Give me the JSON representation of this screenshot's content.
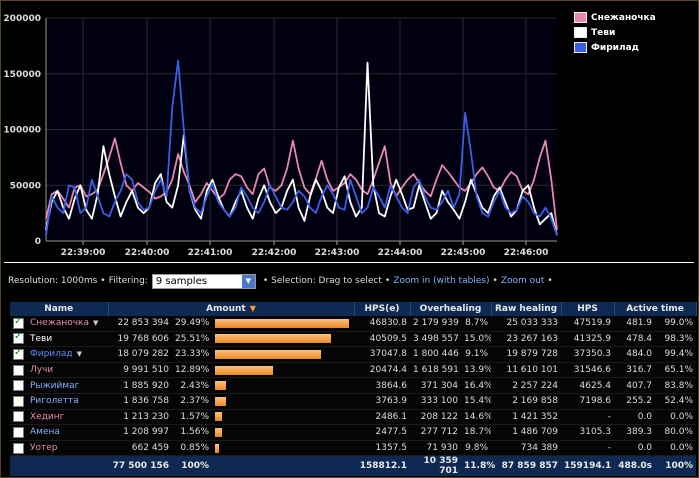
{
  "chart_data": {
    "type": "line",
    "y_ticks": [
      "200000",
      "150000",
      "100000",
      "50000",
      "0"
    ],
    "ylim": [
      0,
      200000
    ],
    "x_ticks": [
      "22:39:00",
      "22:40:00",
      "22:41:00",
      "22:42:00",
      "22:43:00",
      "22:44:00",
      "22:45:00",
      "22:46:00"
    ],
    "xlim": [
      0,
      89
    ],
    "grid": true,
    "legend_position": "right-top",
    "series": [
      {
        "name": "Снежаночка",
        "color": "#e888b0",
        "values": [
          20000,
          42000,
          45000,
          38000,
          30000,
          48000,
          50000,
          40000,
          42000,
          46000,
          60000,
          75000,
          92000,
          70000,
          50000,
          45000,
          52000,
          48000,
          44000,
          38000,
          40000,
          44000,
          55000,
          78000,
          62000,
          50000,
          35000,
          42000,
          52000,
          45000,
          38000,
          42000,
          55000,
          60000,
          58000,
          48000,
          42000,
          60000,
          65000,
          48000,
          45000,
          50000,
          65000,
          90000,
          65000,
          48000,
          42000,
          56000,
          72000,
          55000,
          45000,
          48000,
          52000,
          60000,
          55000,
          46000,
          42000,
          55000,
          70000,
          85000,
          52000,
          40000,
          48000,
          55000,
          60000,
          52000,
          45000,
          40000,
          55000,
          68000,
          62000,
          55000,
          48000,
          45000,
          52000,
          60000,
          66000,
          58000,
          48000,
          45000,
          55000,
          62000,
          58000,
          45000,
          42000,
          55000,
          75000,
          90000,
          55000,
          10000
        ]
      },
      {
        "name": "Теви",
        "color": "#ffffff",
        "values": [
          10000,
          35000,
          45000,
          30000,
          20000,
          38000,
          50000,
          28000,
          20000,
          42000,
          85000,
          60000,
          40000,
          22000,
          35000,
          45000,
          30000,
          25000,
          30000,
          52000,
          60000,
          35000,
          30000,
          50000,
          95000,
          45000,
          28000,
          20000,
          45000,
          55000,
          40000,
          28000,
          22000,
          35000,
          45000,
          30000,
          20000,
          38000,
          50000,
          35000,
          25000,
          30000,
          45000,
          55000,
          30000,
          18000,
          40000,
          55000,
          45000,
          30000,
          25000,
          48000,
          58000,
          35000,
          22000,
          30000,
          160000,
          50000,
          25000,
          22000,
          40000,
          55000,
          42000,
          28000,
          30000,
          50000,
          35000,
          20000,
          25000,
          45000,
          35000,
          28000,
          20000,
          35000,
          55000,
          42000,
          30000,
          25000,
          40000,
          48000,
          35000,
          22000,
          28000,
          45000,
          50000,
          30000,
          15000,
          20000,
          25000,
          5000
        ]
      },
      {
        "name": "Фирилад",
        "color": "#3a5ee8",
        "values": [
          5000,
          40000,
          30000,
          25000,
          50000,
          48000,
          25000,
          30000,
          55000,
          40000,
          25000,
          22000,
          35000,
          45000,
          60000,
          55000,
          35000,
          28000,
          30000,
          45000,
          55000,
          40000,
          120000,
          162000,
          100000,
          45000,
          30000,
          25000,
          40000,
          52000,
          35000,
          28000,
          22000,
          30000,
          48000,
          40000,
          30000,
          25000,
          35000,
          50000,
          40000,
          30000,
          28000,
          35000,
          45000,
          40000,
          30000,
          25000,
          40000,
          50000,
          42000,
          30000,
          28000,
          55000,
          40000,
          25000,
          30000,
          48000,
          40000,
          30000,
          50000,
          40000,
          30000,
          25000,
          48000,
          55000,
          40000,
          30000,
          28000,
          35000,
          45000,
          30000,
          42000,
          115000,
          80000,
          40000,
          25000,
          22000,
          35000,
          45000,
          30000,
          25000,
          28000,
          40000,
          35000,
          25000,
          22000,
          30000,
          20000,
          5000
        ]
      }
    ]
  },
  "controls": {
    "resolution_text": "Resolution: 1000ms",
    "bullet": "•",
    "filtering_label": "Filtering:",
    "filter_value": "9 samples",
    "selection_text": "Selection: Drag to select",
    "zoom_in_label": "Zoom in (with tables)",
    "zoom_out_label": "Zoom out"
  },
  "table": {
    "headers": [
      "Name",
      "Amount",
      "HPS(e)",
      "Overhealing",
      "Raw healing",
      "HPS",
      "Active time"
    ],
    "rows": [
      {
        "name": "Снежаночка",
        "color": "#e888b0",
        "checked": true,
        "dropdown": true,
        "amount": "22 853 394",
        "pct": "29.49%",
        "bar": 0.2949,
        "hpse": "46830.8",
        "overheal": "2 179 939",
        "overpct": "8.7%",
        "raw": "25 033 333",
        "hps": "47519.9",
        "active": "481.9",
        "activepct": "99.0%"
      },
      {
        "name": "Теви",
        "color": "#ffffff",
        "checked": true,
        "dropdown": false,
        "amount": "19 768 606",
        "pct": "25.51%",
        "bar": 0.2551,
        "hpse": "40509.5",
        "overheal": "3 498 557",
        "overpct": "15.0%",
        "raw": "23 267 163",
        "hps": "41325.9",
        "active": "478.4",
        "activepct": "98.3%"
      },
      {
        "name": "Фирилад",
        "color": "#5a8cff",
        "checked": true,
        "dropdown": true,
        "amount": "18 079 282",
        "pct": "23.33%",
        "bar": 0.2333,
        "hpse": "37047.8",
        "overheal": "1 800 446",
        "overpct": "9.1%",
        "raw": "19 879 728",
        "hps": "37350.3",
        "active": "484.0",
        "activepct": "99.4%"
      },
      {
        "name": "Лучи",
        "color": "#e888b0",
        "checked": false,
        "dropdown": false,
        "amount": "9 991 510",
        "pct": "12.89%",
        "bar": 0.1289,
        "hpse": "20474.4",
        "overheal": "1 618 591",
        "overpct": "13.9%",
        "raw": "11 610 101",
        "hps": "31546.6",
        "active": "316.7",
        "activepct": "65.1%"
      },
      {
        "name": "Рыжиймаг",
        "color": "#7fb2ff",
        "checked": false,
        "dropdown": false,
        "amount": "1 885 920",
        "pct": "2.43%",
        "bar": 0.0243,
        "hpse": "3864.6",
        "overheal": "371 304",
        "overpct": "16.4%",
        "raw": "2 257 224",
        "hps": "4625.4",
        "active": "407.7",
        "activepct": "83.8%"
      },
      {
        "name": "Риголетта",
        "color": "#7fb2ff",
        "checked": false,
        "dropdown": false,
        "amount": "1 836 758",
        "pct": "2.37%",
        "bar": 0.0237,
        "hpse": "3763.9",
        "overheal": "333 100",
        "overpct": "15.4%",
        "raw": "2 169 858",
        "hps": "7198.6",
        "active": "255.2",
        "activepct": "52.4%"
      },
      {
        "name": "Хединг",
        "color": "#e888b0",
        "checked": false,
        "dropdown": false,
        "amount": "1 213 230",
        "pct": "1.57%",
        "bar": 0.0157,
        "hpse": "2486.1",
        "overheal": "208 122",
        "overpct": "14.6%",
        "raw": "1 421 352",
        "hps": "-",
        "active": "0.0",
        "activepct": "0.0%"
      },
      {
        "name": "Амена",
        "color": "#7fb2ff",
        "checked": false,
        "dropdown": false,
        "amount": "1 208 997",
        "pct": "1.56%",
        "bar": 0.0156,
        "hpse": "2477.5",
        "overheal": "277 712",
        "overpct": "18.7%",
        "raw": "1 486 709",
        "hps": "3105.3",
        "active": "389.3",
        "activepct": "80.0%"
      },
      {
        "name": "Уотер",
        "color": "#e888b0",
        "checked": false,
        "dropdown": false,
        "amount": "662 459",
        "pct": "0.85%",
        "bar": 0.0085,
        "hpse": "1357.5",
        "overheal": "71 930",
        "overpct": "9.8%",
        "raw": "734 389",
        "hps": "-",
        "active": "0.0",
        "activepct": "0.0%"
      }
    ],
    "totals": {
      "amount": "77 500 156",
      "pct": "100%",
      "hpse": "158812.1",
      "overheal": "10 359 701",
      "overpct": "11.8%",
      "raw": "87 859 857",
      "hps": "159194.1",
      "active": "488.0s",
      "activepct": "100%"
    }
  }
}
